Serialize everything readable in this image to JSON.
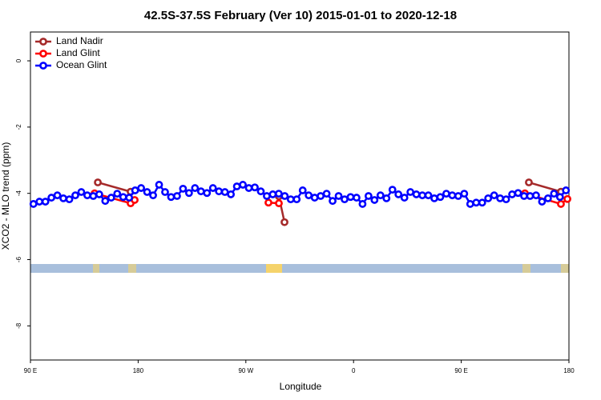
{
  "chart_data": {
    "type": "line",
    "title": "42.5S-37.5S February (Ver 10)   2015-01-01 to 2020-12-18",
    "xlabel": "Longitude",
    "ylabel": "XCO2 - MLO trend (ppm)",
    "xlim": [
      90,
      540
    ],
    "ylim": [
      -9.03,
      0.87
    ],
    "xticks": [
      {
        "value": 90,
        "label": "90 E"
      },
      {
        "value": 180,
        "label": "180"
      },
      {
        "value": 270,
        "label": "90 W"
      },
      {
        "value": 360,
        "label": "0"
      },
      {
        "value": 450,
        "label": "90 E"
      },
      {
        "value": 540,
        "label": "180"
      }
    ],
    "yticks": [
      0,
      -2,
      -4,
      -6,
      -8
    ],
    "legend": "top-left",
    "series": [
      {
        "name": "Land Nadir",
        "color": "#a52a2a",
        "x": [
          146.3,
          173.7,
          null,
          297.6,
          302.3,
          null,
          506.5,
          533.3
        ],
        "values": [
          -3.67,
          -3.95,
          null,
          -4.09,
          -4.87,
          null,
          -3.67,
          -3.95
        ]
      },
      {
        "name": "Land Glint",
        "color": "#ff0000",
        "x": [
          143.6,
          173.7,
          177.1,
          null,
          288.9,
          297.6,
          null,
          503.2,
          533.3,
          538.7
        ],
        "values": [
          -4.0,
          -4.3,
          -4.2,
          null,
          -4.28,
          -4.3,
          null,
          -4.0,
          -4.32,
          -4.17
        ]
      },
      {
        "name": "Ocean Glint",
        "color": "#0000ff",
        "x": [
          92.5,
          97.5,
          102.5,
          107.5,
          112.5,
          117.5,
          122.5,
          127.5,
          132.5,
          137.5,
          142.5,
          147.5,
          152.5,
          157.5,
          162.5,
          167.5,
          172.5,
          177.5,
          182.5,
          187.5,
          192.5,
          197.5,
          202.5,
          207.5,
          212.5,
          217.5,
          222.5,
          227.5,
          232.5,
          237.5,
          242.5,
          247.5,
          252.5,
          257.5,
          262.5,
          267.5,
          272.5,
          277.5,
          282.5,
          287.5,
          292.5,
          297.5,
          302.5,
          307.5,
          312.5,
          317.5,
          322.5,
          327.5,
          332.5,
          337.5,
          342.5,
          347.5,
          352.5,
          357.5,
          362.5,
          367.5,
          372.5,
          377.5,
          382.5,
          387.5,
          392.5,
          397.5,
          402.5,
          407.5,
          412.5,
          417.5,
          422.5,
          427.5,
          432.5,
          437.5,
          442.5,
          447.5,
          452.5,
          457.5,
          462.5,
          467.5,
          472.5,
          477.5,
          482.5,
          487.5,
          492.5,
          497.5,
          502.5,
          507.5,
          512.5,
          517.5,
          522.5,
          527.5,
          532.5,
          537.5
        ],
        "values": [
          -4.32,
          -4.25,
          -4.25,
          -4.13,
          -4.06,
          -4.15,
          -4.18,
          -4.06,
          -3.96,
          -4.06,
          -4.08,
          -4.03,
          -4.23,
          -4.13,
          -4.01,
          -4.11,
          -4.13,
          -3.91,
          -3.84,
          -3.96,
          -4.06,
          -3.74,
          -3.96,
          -4.11,
          -4.08,
          -3.86,
          -3.99,
          -3.84,
          -3.94,
          -3.99,
          -3.84,
          -3.94,
          -3.96,
          -4.03,
          -3.79,
          -3.74,
          -3.84,
          -3.82,
          -3.94,
          -4.08,
          -4.03,
          -4.01,
          -4.08,
          -4.18,
          -4.18,
          -3.91,
          -4.06,
          -4.13,
          -4.08,
          -4.01,
          -4.23,
          -4.08,
          -4.18,
          -4.11,
          -4.13,
          -4.32,
          -4.08,
          -4.2,
          -4.06,
          -4.15,
          -3.89,
          -4.03,
          -4.13,
          -3.96,
          -4.03,
          -4.06,
          -4.06,
          -4.15,
          -4.11,
          -4.01,
          -4.06,
          -4.08,
          -4.01,
          -4.32,
          -4.28,
          -4.28,
          -4.15,
          -4.06,
          -4.15,
          -4.18,
          -4.03,
          -3.99,
          -4.08,
          -4.08,
          -4.06,
          -4.25,
          -4.15,
          -4.01,
          -4.11,
          -3.91
        ]
      }
    ]
  }
}
